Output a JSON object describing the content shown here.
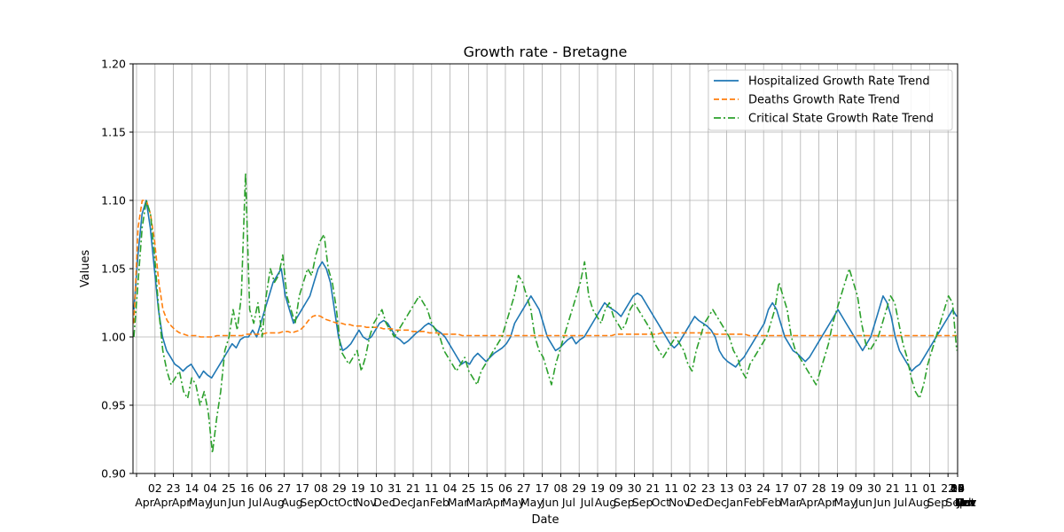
{
  "chart_data": {
    "type": "line",
    "title": "Growth rate - Bretagne",
    "xlabel": "Date",
    "ylabel": "Values",
    "ylim": [
      0.9,
      1.2
    ],
    "yticks": [
      "0.90",
      "0.95",
      "1.00",
      "1.05",
      "1.10",
      "1.15",
      "1.20"
    ],
    "grid": true,
    "legend_position": "top-right",
    "x_tick_labels": [
      {
        "day": "",
        "month": "Apr"
      },
      {
        "day": "02",
        "month": "Apr"
      },
      {
        "day": "23",
        "month": "Apr"
      },
      {
        "day": "14",
        "month": "May"
      },
      {
        "day": "04",
        "month": "Jun"
      },
      {
        "day": "25",
        "month": "Jun"
      },
      {
        "day": "16",
        "month": "Jul"
      },
      {
        "day": "06",
        "month": "Aug"
      },
      {
        "day": "27",
        "month": "Aug"
      },
      {
        "day": "17",
        "month": "Sep"
      },
      {
        "day": "08",
        "month": "Oct"
      },
      {
        "day": "29",
        "month": "Oct"
      },
      {
        "day": "19",
        "month": "Nov"
      },
      {
        "day": "10",
        "month": "Dec"
      },
      {
        "day": "31",
        "month": "Dec"
      },
      {
        "day": "21",
        "month": "Jan"
      },
      {
        "day": "11",
        "month": "Feb"
      },
      {
        "day": "04",
        "month": "Mar"
      },
      {
        "day": "25",
        "month": "Mar"
      },
      {
        "day": "15",
        "month": "Apr"
      },
      {
        "day": "06",
        "month": "May"
      },
      {
        "day": "27",
        "month": "May"
      },
      {
        "day": "17",
        "month": "Jun"
      },
      {
        "day": "08",
        "month": "Jul"
      },
      {
        "day": "29",
        "month": "Jul"
      },
      {
        "day": "19",
        "month": "Aug"
      },
      {
        "day": "09",
        "month": "Sep"
      },
      {
        "day": "30",
        "month": "Sep"
      },
      {
        "day": "21",
        "month": "Oct"
      },
      {
        "day": "11",
        "month": "Nov"
      },
      {
        "day": "02",
        "month": "Dec"
      },
      {
        "day": "23",
        "month": "Dec"
      },
      {
        "day": "13",
        "month": "Jan"
      },
      {
        "day": "03",
        "month": "Feb"
      },
      {
        "day": "24",
        "month": "Feb"
      },
      {
        "day": "17",
        "month": "Mar"
      },
      {
        "day": "07",
        "month": "Apr"
      },
      {
        "day": "28",
        "month": "Apr"
      },
      {
        "day": "19",
        "month": "May"
      },
      {
        "day": "09",
        "month": "Jun"
      },
      {
        "day": "30",
        "month": "Jun"
      },
      {
        "day": "21",
        "month": "Jul"
      },
      {
        "day": "11",
        "month": "Aug"
      },
      {
        "day": "01",
        "month": "Sep"
      },
      {
        "day": "22",
        "month": "Sep"
      },
      {
        "day": "13",
        "month": "Oct"
      },
      {
        "day": "03",
        "month": "Nov"
      },
      {
        "day": "24",
        "month": "Nov"
      },
      {
        "day": "15",
        "month": "Dec"
      },
      {
        "day": "05",
        "month": "Jan"
      },
      {
        "day": "26",
        "month": "Jan"
      },
      {
        "day": "16",
        "month": "Feb"
      },
      {
        "day": "09",
        "month": "Mar"
      },
      {
        "day": "30",
        "month": "Mar"
      }
    ],
    "series": [
      {
        "name": "Hospitalized Growth Rate Trend",
        "color": "#1f77b4",
        "style": "solid",
        "values": [
          1.02,
          1.06,
          1.09,
          1.1,
          1.08,
          1.05,
          1.02,
          1.0,
          0.99,
          0.985,
          0.98,
          0.978,
          0.975,
          0.978,
          0.98,
          0.975,
          0.97,
          0.975,
          0.972,
          0.97,
          0.975,
          0.98,
          0.985,
          0.99,
          0.995,
          0.992,
          0.998,
          1.0,
          1.0,
          1.005,
          1.0,
          1.01,
          1.02,
          1.03,
          1.04,
          1.045,
          1.05,
          1.03,
          1.02,
          1.01,
          1.015,
          1.02,
          1.025,
          1.03,
          1.04,
          1.05,
          1.055,
          1.05,
          1.04,
          1.02,
          1.0,
          0.99,
          0.992,
          0.995,
          1.0,
          1.005,
          1.0,
          0.998,
          1.0,
          1.005,
          1.01,
          1.012,
          1.01,
          1.005,
          1.0,
          0.998,
          0.995,
          0.997,
          1.0,
          1.003,
          1.005,
          1.008,
          1.01,
          1.008,
          1.005,
          1.003,
          1.0,
          0.995,
          0.99,
          0.985,
          0.98,
          0.982,
          0.98,
          0.985,
          0.988,
          0.985,
          0.982,
          0.985,
          0.988,
          0.99,
          0.992,
          0.995,
          1.0,
          1.01,
          1.015,
          1.02,
          1.025,
          1.03,
          1.025,
          1.02,
          1.01,
          1.0,
          0.995,
          0.99,
          0.992,
          0.995,
          0.998,
          1.0,
          0.995,
          0.998,
          1.0,
          1.005,
          1.01,
          1.015,
          1.02,
          1.025,
          1.022,
          1.02,
          1.018,
          1.015,
          1.02,
          1.025,
          1.03,
          1.032,
          1.03,
          1.025,
          1.02,
          1.015,
          1.01,
          1.005,
          1.0,
          0.995,
          0.992,
          0.995,
          1.0,
          1.005,
          1.01,
          1.015,
          1.012,
          1.01,
          1.008,
          1.005,
          1.0,
          0.99,
          0.985,
          0.982,
          0.98,
          0.978,
          0.982,
          0.985,
          0.99,
          0.995,
          1.0,
          1.005,
          1.01,
          1.02,
          1.025,
          1.02,
          1.01,
          1.0,
          0.995,
          0.99,
          0.988,
          0.985,
          0.982,
          0.985,
          0.99,
          0.995,
          1.0,
          1.005,
          1.01,
          1.015,
          1.02,
          1.015,
          1.01,
          1.005,
          1.0,
          0.995,
          0.99,
          0.995,
          1.0,
          1.01,
          1.02,
          1.03,
          1.025,
          1.015,
          1.0,
          0.99,
          0.985,
          0.98,
          0.975,
          0.978,
          0.98,
          0.985,
          0.99,
          0.995,
          1.0,
          1.005,
          1.01,
          1.015,
          1.02,
          1.015
        ]
      },
      {
        "name": "Deaths Growth Rate Trend",
        "color": "#ff7f0e",
        "style": "dashed",
        "values": [
          1.01,
          1.08,
          1.1,
          1.1,
          1.09,
          1.07,
          1.04,
          1.02,
          1.012,
          1.008,
          1.005,
          1.003,
          1.002,
          1.001,
          1.001,
          1.001,
          1.0,
          1.0,
          1.0,
          1.0,
          1.001,
          1.001,
          1.001,
          1.001,
          1.001,
          1.001,
          1.001,
          1.002,
          1.002,
          1.002,
          1.002,
          1.002,
          1.003,
          1.003,
          1.003,
          1.003,
          1.004,
          1.004,
          1.003,
          1.004,
          1.005,
          1.008,
          1.012,
          1.015,
          1.016,
          1.015,
          1.013,
          1.012,
          1.011,
          1.01,
          1.01,
          1.009,
          1.009,
          1.008,
          1.008,
          1.008,
          1.007,
          1.007,
          1.007,
          1.007,
          1.006,
          1.006,
          1.006,
          1.005,
          1.005,
          1.005,
          1.005,
          1.004,
          1.004,
          1.004,
          1.004,
          1.003,
          1.003,
          1.003,
          1.002,
          1.002,
          1.002,
          1.002,
          1.002,
          1.001,
          1.001,
          1.001,
          1.001,
          1.001,
          1.001,
          1.001,
          1.001,
          1.001,
          1.001,
          1.001,
          1.001,
          1.001,
          1.001,
          1.001,
          1.001,
          1.001,
          1.001,
          1.001,
          1.001,
          1.001,
          1.001,
          1.001,
          1.001,
          1.001,
          1.001,
          1.001,
          1.001,
          1.001,
          1.001,
          1.001,
          1.001,
          1.001,
          1.001,
          1.001,
          1.001,
          1.001,
          1.002,
          1.002,
          1.002,
          1.002,
          1.002,
          1.002,
          1.002,
          1.002,
          1.002,
          1.002,
          1.002,
          1.003,
          1.003,
          1.003,
          1.003,
          1.003,
          1.003,
          1.003,
          1.003,
          1.003,
          1.003,
          1.003,
          1.003,
          1.003,
          1.002,
          1.002,
          1.002,
          1.002,
          1.002,
          1.002,
          1.002,
          1.002,
          1.001,
          1.001,
          1.001,
          1.001,
          1.001,
          1.001,
          1.001,
          1.001,
          1.001,
          1.001,
          1.001,
          1.001,
          1.001,
          1.001,
          1.001,
          1.001,
          1.001,
          1.001,
          1.001,
          1.001,
          1.001,
          1.001,
          1.001,
          1.001,
          1.001,
          1.001,
          1.001,
          1.001,
          1.001,
          1.001,
          1.001,
          1.001,
          1.001,
          1.001,
          1.001,
          1.001,
          1.001,
          1.001,
          1.001,
          1.001,
          1.001,
          1.001,
          1.001,
          1.001,
          1.001,
          1.001,
          1.001,
          1.001,
          1.001,
          1.001,
          1.001
        ]
      },
      {
        "name": "Critical State Growth Rate Trend",
        "color": "#2ca02c",
        "style": "dashdot",
        "values": [
          1.0,
          1.04,
          1.08,
          1.1,
          1.09,
          1.06,
          1.02,
          0.99,
          0.975,
          0.965,
          0.97,
          0.975,
          0.96,
          0.955,
          0.97,
          0.965,
          0.95,
          0.96,
          0.945,
          0.915,
          0.94,
          0.96,
          0.99,
          1.0,
          1.02,
          1.005,
          1.03,
          1.12,
          1.02,
          1.01,
          1.025,
          1.0,
          1.03,
          1.05,
          1.04,
          1.045,
          1.06,
          1.03,
          1.02,
          1.01,
          1.03,
          1.04,
          1.05,
          1.045,
          1.06,
          1.07,
          1.075,
          1.05,
          1.04,
          1.02,
          0.99,
          0.985,
          0.98,
          0.985,
          0.99,
          0.975,
          0.985,
          1.0,
          1.01,
          1.015,
          1.02,
          1.01,
          1.005,
          1.0,
          1.005,
          1.01,
          1.015,
          1.02,
          1.025,
          1.03,
          1.025,
          1.02,
          1.01,
          1.005,
          1.0,
          0.99,
          0.985,
          0.98,
          0.975,
          0.98,
          0.985,
          0.975,
          0.97,
          0.965,
          0.975,
          0.98,
          0.985,
          0.99,
          0.995,
          1.0,
          1.01,
          1.02,
          1.03,
          1.045,
          1.04,
          1.03,
          1.02,
          1.0,
          0.99,
          0.985,
          0.975,
          0.965,
          0.98,
          0.99,
          1.0,
          1.01,
          1.02,
          1.03,
          1.04,
          1.055,
          1.03,
          1.02,
          1.015,
          1.01,
          1.02,
          1.025,
          1.015,
          1.01,
          1.005,
          1.01,
          1.02,
          1.025,
          1.02,
          1.015,
          1.01,
          1.005,
          0.995,
          0.99,
          0.985,
          0.99,
          0.995,
          1.0,
          0.995,
          0.99,
          0.98,
          0.975,
          0.99,
          1.0,
          1.01,
          1.015,
          1.02,
          1.015,
          1.01,
          1.005,
          1.0,
          0.99,
          0.985,
          0.975,
          0.97,
          0.98,
          0.985,
          0.99,
          0.995,
          1.0,
          1.01,
          1.02,
          1.04,
          1.03,
          1.02,
          1.0,
          0.99,
          0.985,
          0.98,
          0.975,
          0.97,
          0.965,
          0.975,
          0.985,
          0.995,
          1.01,
          1.02,
          1.03,
          1.04,
          1.05,
          1.04,
          1.03,
          1.01,
          0.995,
          0.99,
          0.995,
          1.0,
          1.01,
          1.02,
          1.03,
          1.025,
          1.01,
          0.995,
          0.985,
          0.97,
          0.96,
          0.955,
          0.965,
          0.98,
          0.99,
          1.0,
          1.01,
          1.02,
          1.03,
          1.025,
          0.99
        ]
      }
    ]
  }
}
